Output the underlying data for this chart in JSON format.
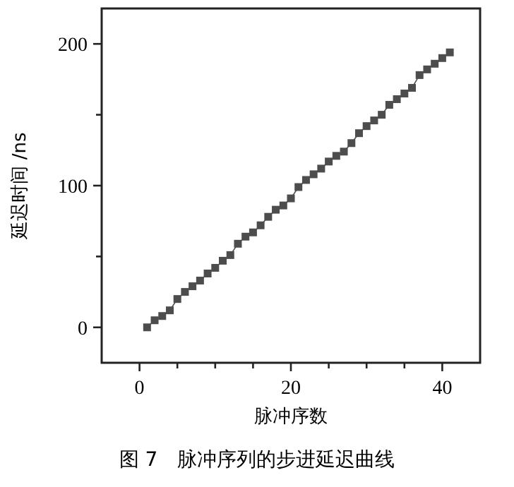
{
  "chart_data": {
    "type": "line",
    "xlabel": "脉冲序数",
    "ylabel": "延迟时间 /ns",
    "annotations": [
      "图 7　脉冲序列的步进延迟曲线"
    ],
    "x": [
      1,
      2,
      3,
      4,
      5,
      6,
      7,
      8,
      9,
      10,
      11,
      12,
      13,
      14,
      15,
      16,
      17,
      18,
      19,
      20,
      21,
      22,
      23,
      24,
      25,
      26,
      27,
      28,
      29,
      30,
      31,
      32,
      33,
      34,
      35,
      36,
      37,
      38,
      39,
      40,
      41
    ],
    "series": [
      {
        "color": "#4d4d4d",
        "values": [
          0,
          5,
          8,
          12,
          20,
          25,
          29,
          33,
          38,
          42,
          47,
          51,
          59,
          64,
          67,
          72,
          78,
          83,
          86,
          91,
          99,
          104,
          108,
          112,
          117,
          121,
          124,
          130,
          137,
          142,
          146,
          150,
          157,
          161,
          165,
          169,
          178,
          182,
          186,
          190,
          194
        ]
      }
    ],
    "marker": "square",
    "line_style": "solid",
    "grid": false,
    "xlim": [
      -5,
      45
    ],
    "xticks": [
      0,
      {
        "value": 5,
        "label": null
      },
      {
        "value": 10,
        "label": null
      },
      {
        "value": 15,
        "label": null
      },
      20,
      {
        "value": 25,
        "label": null
      },
      {
        "value": 30,
        "label": null
      },
      {
        "value": 35,
        "label": null
      },
      40
    ],
    "ylim": [
      -25,
      225
    ],
    "yticks": [
      0,
      {
        "value": 50,
        "label": null
      },
      100,
      {
        "value": 150,
        "label": null
      },
      200
    ]
  }
}
